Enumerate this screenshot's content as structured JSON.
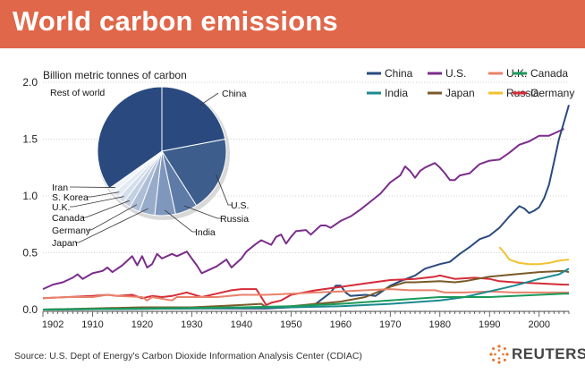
{
  "header": {
    "title": "World carbon emissions"
  },
  "footer": {
    "source": "Source: U.S. Dept of Energy's Carbon Dioxide Information Analysis Center (CDIAC)",
    "brand": "REUTERS"
  },
  "colors": {
    "banner": "#e0674a",
    "China": "#2a4a7f",
    "U.S.": "#7b2d8b",
    "U.K.": "#e8816a",
    "Canada": "#1a9a5a",
    "India": "#1b8a8f",
    "Japan": "#7a5a2a",
    "Russia": "#f2c230",
    "Germany": "#d42c38"
  },
  "chart_data": {
    "type": "line",
    "ylabel": "Billion metric tonnes of carbon",
    "xlim": [
      1900,
      2006
    ],
    "ylim": [
      0,
      2.0
    ],
    "yticks": [
      "0.0",
      "0.5",
      "1.0",
      "1.5",
      "2.0"
    ],
    "xticks": [
      "1902",
      "1910",
      "1920",
      "1930",
      "1940",
      "1950",
      "1960",
      "1970",
      "1980",
      "1990",
      "2000"
    ],
    "legend": [
      [
        "China",
        "U.S.",
        "U.K.",
        "Canada"
      ],
      [
        "India",
        "Japan",
        "Russia",
        "Germany"
      ]
    ],
    "series": [
      {
        "name": "U.S.",
        "points": [
          [
            1900,
            0.18
          ],
          [
            1902,
            0.22
          ],
          [
            1904,
            0.24
          ],
          [
            1906,
            0.28
          ],
          [
            1907,
            0.31
          ],
          [
            1908,
            0.27
          ],
          [
            1910,
            0.32
          ],
          [
            1912,
            0.34
          ],
          [
            1913,
            0.37
          ],
          [
            1914,
            0.33
          ],
          [
            1916,
            0.39
          ],
          [
            1917,
            0.43
          ],
          [
            1918,
            0.47
          ],
          [
            1919,
            0.39
          ],
          [
            1920,
            0.47
          ],
          [
            1921,
            0.37
          ],
          [
            1922,
            0.4
          ],
          [
            1923,
            0.49
          ],
          [
            1924,
            0.45
          ],
          [
            1926,
            0.49
          ],
          [
            1927,
            0.47
          ],
          [
            1929,
            0.51
          ],
          [
            1930,
            0.45
          ],
          [
            1931,
            0.39
          ],
          [
            1932,
            0.32
          ],
          [
            1933,
            0.34
          ],
          [
            1935,
            0.38
          ],
          [
            1937,
            0.44
          ],
          [
            1938,
            0.37
          ],
          [
            1940,
            0.45
          ],
          [
            1941,
            0.51
          ],
          [
            1943,
            0.58
          ],
          [
            1944,
            0.61
          ],
          [
            1946,
            0.57
          ],
          [
            1947,
            0.64
          ],
          [
            1948,
            0.66
          ],
          [
            1949,
            0.58
          ],
          [
            1950,
            0.64
          ],
          [
            1951,
            0.69
          ],
          [
            1953,
            0.7
          ],
          [
            1954,
            0.66
          ],
          [
            1956,
            0.74
          ],
          [
            1957,
            0.74
          ],
          [
            1958,
            0.72
          ],
          [
            1960,
            0.78
          ],
          [
            1962,
            0.82
          ],
          [
            1964,
            0.88
          ],
          [
            1966,
            0.95
          ],
          [
            1968,
            1.02
          ],
          [
            1970,
            1.12
          ],
          [
            1972,
            1.18
          ],
          [
            1973,
            1.26
          ],
          [
            1974,
            1.22
          ],
          [
            1975,
            1.16
          ],
          [
            1976,
            1.22
          ],
          [
            1977,
            1.25
          ],
          [
            1978,
            1.27
          ],
          [
            1979,
            1.29
          ],
          [
            1980,
            1.25
          ],
          [
            1981,
            1.2
          ],
          [
            1982,
            1.14
          ],
          [
            1983,
            1.14
          ],
          [
            1984,
            1.18
          ],
          [
            1986,
            1.2
          ],
          [
            1988,
            1.28
          ],
          [
            1990,
            1.31
          ],
          [
            1992,
            1.32
          ],
          [
            1994,
            1.38
          ],
          [
            1996,
            1.45
          ],
          [
            1998,
            1.48
          ],
          [
            2000,
            1.53
          ],
          [
            2002,
            1.53
          ],
          [
            2004,
            1.57
          ],
          [
            2005,
            1.59
          ]
        ]
      },
      {
        "name": "China",
        "points": [
          [
            1900,
            0.0
          ],
          [
            1930,
            0.01
          ],
          [
            1945,
            0.01
          ],
          [
            1950,
            0.02
          ],
          [
            1955,
            0.05
          ],
          [
            1958,
            0.15
          ],
          [
            1959,
            0.21
          ],
          [
            1960,
            0.21
          ],
          [
            1961,
            0.15
          ],
          [
            1962,
            0.12
          ],
          [
            1965,
            0.13
          ],
          [
            1967,
            0.12
          ],
          [
            1970,
            0.21
          ],
          [
            1972,
            0.25
          ],
          [
            1975,
            0.3
          ],
          [
            1977,
            0.36
          ],
          [
            1980,
            0.4
          ],
          [
            1982,
            0.42
          ],
          [
            1984,
            0.49
          ],
          [
            1986,
            0.55
          ],
          [
            1988,
            0.62
          ],
          [
            1990,
            0.65
          ],
          [
            1992,
            0.72
          ],
          [
            1994,
            0.82
          ],
          [
            1996,
            0.91
          ],
          [
            1997,
            0.89
          ],
          [
            1998,
            0.85
          ],
          [
            1999,
            0.87
          ],
          [
            2000,
            0.9
          ],
          [
            2001,
            0.98
          ],
          [
            2002,
            1.1
          ],
          [
            2003,
            1.3
          ],
          [
            2004,
            1.5
          ],
          [
            2005,
            1.65
          ],
          [
            2006,
            1.8
          ]
        ]
      },
      {
        "name": "Russia",
        "points": [
          [
            1992,
            0.55
          ],
          [
            1993,
            0.5
          ],
          [
            1994,
            0.44
          ],
          [
            1996,
            0.41
          ],
          [
            1998,
            0.4
          ],
          [
            2000,
            0.4
          ],
          [
            2002,
            0.41
          ],
          [
            2004,
            0.43
          ],
          [
            2006,
            0.44
          ]
        ]
      },
      {
        "name": "Germany",
        "points": [
          [
            1900,
            0.1
          ],
          [
            1905,
            0.11
          ],
          [
            1910,
            0.12
          ],
          [
            1913,
            0.13
          ],
          [
            1915,
            0.12
          ],
          [
            1918,
            0.13
          ],
          [
            1920,
            0.1
          ],
          [
            1922,
            0.12
          ],
          [
            1924,
            0.11
          ],
          [
            1926,
            0.12
          ],
          [
            1928,
            0.14
          ],
          [
            1929,
            0.15
          ],
          [
            1932,
            0.11
          ],
          [
            1935,
            0.14
          ],
          [
            1938,
            0.17
          ],
          [
            1940,
            0.18
          ],
          [
            1943,
            0.18
          ],
          [
            1945,
            0.04
          ],
          [
            1946,
            0.06
          ],
          [
            1948,
            0.08
          ],
          [
            1950,
            0.13
          ],
          [
            1955,
            0.17
          ],
          [
            1960,
            0.2
          ],
          [
            1965,
            0.23
          ],
          [
            1970,
            0.26
          ],
          [
            1975,
            0.27
          ],
          [
            1979,
            0.29
          ],
          [
            1980,
            0.3
          ],
          [
            1983,
            0.27
          ],
          [
            1987,
            0.28
          ],
          [
            1990,
            0.27
          ],
          [
            1992,
            0.25
          ],
          [
            1995,
            0.24
          ],
          [
            2000,
            0.23
          ],
          [
            2005,
            0.22
          ],
          [
            2006,
            0.22
          ]
        ]
      },
      {
        "name": "Japan",
        "points": [
          [
            1900,
            0.0
          ],
          [
            1910,
            0.01
          ],
          [
            1920,
            0.02
          ],
          [
            1930,
            0.02
          ],
          [
            1940,
            0.04
          ],
          [
            1944,
            0.05
          ],
          [
            1945,
            0.02
          ],
          [
            1946,
            0.02
          ],
          [
            1950,
            0.03
          ],
          [
            1955,
            0.05
          ],
          [
            1960,
            0.07
          ],
          [
            1965,
            0.11
          ],
          [
            1970,
            0.2
          ],
          [
            1973,
            0.24
          ],
          [
            1975,
            0.24
          ],
          [
            1980,
            0.25
          ],
          [
            1983,
            0.24
          ],
          [
            1985,
            0.25
          ],
          [
            1990,
            0.29
          ],
          [
            1995,
            0.31
          ],
          [
            2000,
            0.33
          ],
          [
            2005,
            0.34
          ],
          [
            2006,
            0.33
          ]
        ]
      },
      {
        "name": "U.K.",
        "points": [
          [
            1900,
            0.1
          ],
          [
            1905,
            0.11
          ],
          [
            1910,
            0.11
          ],
          [
            1913,
            0.13
          ],
          [
            1915,
            0.12
          ],
          [
            1920,
            0.11
          ],
          [
            1921,
            0.08
          ],
          [
            1922,
            0.11
          ],
          [
            1926,
            0.08
          ],
          [
            1927,
            0.11
          ],
          [
            1930,
            0.11
          ],
          [
            1935,
            0.11
          ],
          [
            1940,
            0.13
          ],
          [
            1945,
            0.13
          ],
          [
            1950,
            0.14
          ],
          [
            1955,
            0.15
          ],
          [
            1960,
            0.16
          ],
          [
            1965,
            0.17
          ],
          [
            1970,
            0.18
          ],
          [
            1974,
            0.17
          ],
          [
            1979,
            0.17
          ],
          [
            1981,
            0.15
          ],
          [
            1985,
            0.15
          ],
          [
            1990,
            0.16
          ],
          [
            1995,
            0.15
          ],
          [
            2000,
            0.15
          ],
          [
            2005,
            0.15
          ],
          [
            2006,
            0.15
          ]
        ]
      },
      {
        "name": "India",
        "points": [
          [
            1900,
            0.0
          ],
          [
            1930,
            0.01
          ],
          [
            1950,
            0.02
          ],
          [
            1960,
            0.03
          ],
          [
            1970,
            0.05
          ],
          [
            1980,
            0.08
          ],
          [
            1985,
            0.11
          ],
          [
            1990,
            0.16
          ],
          [
            1995,
            0.21
          ],
          [
            2000,
            0.27
          ],
          [
            2004,
            0.31
          ],
          [
            2006,
            0.36
          ]
        ]
      },
      {
        "name": "Canada",
        "points": [
          [
            1900,
            0.0
          ],
          [
            1920,
            0.01
          ],
          [
            1940,
            0.02
          ],
          [
            1950,
            0.03
          ],
          [
            1960,
            0.05
          ],
          [
            1970,
            0.08
          ],
          [
            1980,
            0.11
          ],
          [
            1985,
            0.11
          ],
          [
            1990,
            0.11
          ],
          [
            1995,
            0.12
          ],
          [
            2000,
            0.13
          ],
          [
            2005,
            0.14
          ],
          [
            2006,
            0.14
          ]
        ]
      }
    ],
    "pie": {
      "slices": [
        {
          "label": "China",
          "value": 22.0
        },
        {
          "label": "U.S.",
          "value": 19.0
        },
        {
          "label": "Russia",
          "value": 5.6
        },
        {
          "label": "India",
          "value": 5.2
        },
        {
          "label": "Japan",
          "value": 3.9
        },
        {
          "label": "Germany",
          "value": 2.6
        },
        {
          "label": "Canada",
          "value": 1.9
        },
        {
          "label": "U.K.",
          "value": 1.8
        },
        {
          "label": "S. Korea",
          "value": 1.7
        },
        {
          "label": "Iran",
          "value": 1.5
        },
        {
          "label": "Rest of world",
          "value": 34.8
        }
      ],
      "colors": [
        "#2a4a7f",
        "#3d5d8c",
        "#5e7aa6",
        "#7f97bd",
        "#97abc9",
        "#aebed6",
        "#c3d0e2",
        "#d5dfeb",
        "#e3eaf3",
        "#eef3f9",
        "#2a4a7f"
      ]
    }
  }
}
